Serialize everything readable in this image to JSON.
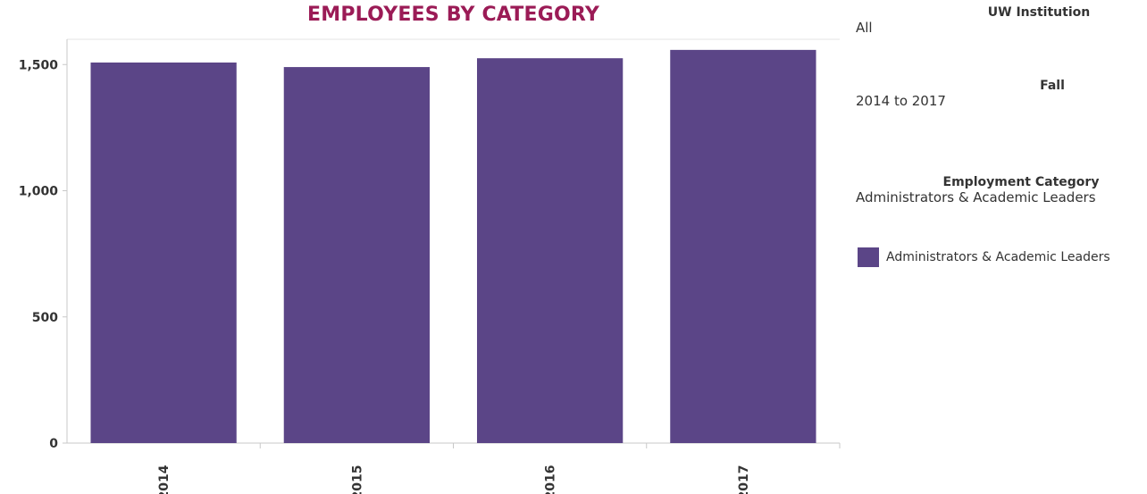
{
  "chart_data": {
    "type": "bar",
    "title": "EMPLOYEES BY CATEGORY",
    "categories": [
      "2014",
      "2015",
      "2016",
      "2017"
    ],
    "series": [
      {
        "name": "Administrators & Academic Leaders",
        "values": [
          1508,
          1490,
          1525,
          1558
        ]
      }
    ],
    "ylim": [
      0,
      1600
    ],
    "yticks": [
      0,
      500,
      1000,
      1500
    ],
    "ytick_labels": [
      "0",
      "500",
      "1,000",
      "1,500"
    ],
    "bar_color": "#5b4587",
    "title_color": "#9b1b56",
    "grid": false,
    "legend_position": "right"
  },
  "filters": {
    "institution": {
      "label": "UW Institution",
      "value": "All"
    },
    "fall": {
      "label": "Fall",
      "value": "2014 to 2017"
    },
    "category": {
      "label": "Employment Category",
      "value": "Administrators & Academic Leaders"
    }
  },
  "legend": {
    "label": "Administrators & Academic Leaders"
  }
}
